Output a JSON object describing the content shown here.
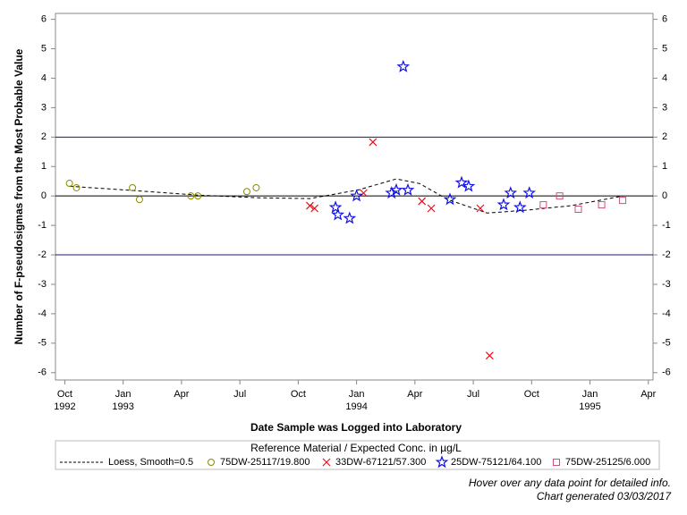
{
  "chart_data": {
    "type": "scatter",
    "ylabel": "Number of F-pseudosigmas from the Most Probable Value",
    "xlabel": "Date Sample was Logged into Laboratory",
    "legend_title": "Reference Material / Expected Conc. in µg/L",
    "ylim": [
      -6.25,
      6.2
    ],
    "yticks": [
      -6,
      -5,
      -4,
      -3,
      -2,
      -1,
      0,
      1,
      2,
      3,
      4,
      5,
      6
    ],
    "xlim": [
      1992.71,
      1995.27
    ],
    "xticks": [
      {
        "value": 1992.75,
        "label": "Oct",
        "sublabel": "1992"
      },
      {
        "value": 1993.0,
        "label": "Jan",
        "sublabel": "1993"
      },
      {
        "value": 1993.25,
        "label": "Apr"
      },
      {
        "value": 1993.5,
        "label": "Jul"
      },
      {
        "value": 1993.75,
        "label": "Oct"
      },
      {
        "value": 1994.0,
        "label": "Jan",
        "sublabel": "1994"
      },
      {
        "value": 1994.25,
        "label": "Apr"
      },
      {
        "value": 1994.5,
        "label": "Jul"
      },
      {
        "value": 1994.75,
        "label": "Oct"
      },
      {
        "value": 1995.0,
        "label": "Jan",
        "sublabel": "1995"
      },
      {
        "value": 1995.25,
        "label": "Apr"
      }
    ],
    "reference_lines": [
      {
        "value": 2,
        "color": "#1a1a6e"
      },
      {
        "value": 0,
        "color": "#000000"
      },
      {
        "value": -2,
        "color": "#1a1a6e"
      }
    ],
    "series": [
      {
        "name": "Loess, Smooth=0.5",
        "color": "#000000",
        "marker": "dashed-line",
        "x": [
          1992.77,
          1993.05,
          1993.32,
          1993.58,
          1993.8,
          1994.01,
          1994.17,
          1994.27,
          1994.39,
          1994.56,
          1994.73,
          1994.92,
          1995.14
        ],
        "values": [
          0.33,
          0.18,
          0.03,
          -0.06,
          -0.09,
          0.21,
          0.58,
          0.42,
          -0.12,
          -0.58,
          -0.48,
          -0.33,
          0
        ]
      },
      {
        "name": "75DW-25117/19.800",
        "color": "#8a8a00",
        "marker": "circle",
        "x": [
          1992.77,
          1992.8,
          1993.04,
          1993.07,
          1993.29,
          1993.32,
          1993.53,
          1993.57
        ],
        "values": [
          0.43,
          0.28,
          0.28,
          -0.12,
          0,
          0,
          0.15,
          0.28
        ]
      },
      {
        "name": "33DW-67121/57.300",
        "color": "#e8101a",
        "marker": "x",
        "x": [
          1993.8,
          1993.82,
          1994.03,
          1994.07,
          1994.28,
          1994.32,
          1994.53,
          1994.57
        ],
        "values": [
          -0.33,
          -0.42,
          0.1,
          1.83,
          -0.18,
          -0.42,
          -0.42,
          -5.42
        ]
      },
      {
        "name": "25DW-75121/64.100",
        "color": "#1010e8",
        "marker": "star",
        "x": [
          1993.91,
          1993.92,
          1993.97,
          1994.0,
          1994.15,
          1994.17,
          1994.2,
          1994.22,
          1994.4,
          1994.45,
          1994.48,
          1994.63,
          1994.66,
          1994.7,
          1994.74
        ],
        "values": [
          -0.39,
          -0.64,
          -0.76,
          0,
          0.1,
          0.2,
          4.39,
          0.2,
          -0.12,
          0.45,
          0.33,
          -0.3,
          0.1,
          -0.39,
          0.1
        ]
      },
      {
        "name": "75DW-25125/6.000",
        "color": "#d0507a",
        "marker": "square",
        "x": [
          1994.8,
          1994.87,
          1994.95,
          1995.05,
          1995.14
        ],
        "values": [
          -0.3,
          0,
          -0.45,
          -0.3,
          -0.15
        ]
      }
    ],
    "footnotes": [
      "Hover over any data point for detailed info.",
      "Chart generated 03/03/2017"
    ]
  }
}
